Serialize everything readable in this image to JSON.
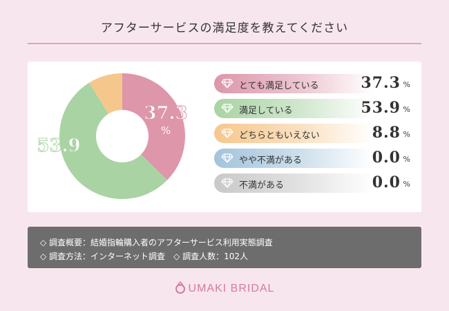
{
  "title": "アフターサービスの満足度を教えてください",
  "chart_data": {
    "type": "pie",
    "categories": [
      "とても満足している",
      "満足している",
      "どちらともいえない",
      "やや不満がある",
      "不満がある"
    ],
    "values": [
      37.3,
      53.9,
      8.8,
      0.0,
      0.0
    ],
    "value_labels": [
      "37.3",
      "53.9",
      "8.8",
      "0.0",
      "0.0"
    ],
    "unit": "%",
    "colors": [
      "#dd96aa",
      "#a9d3a3",
      "#f6c78d",
      "#a3c4dc",
      "#c9c9c9"
    ]
  },
  "notes": {
    "line1": "◇ 調査概要：結婚指輪購入者のアフターサービス利用実態調査",
    "line2": "◇ 調査方法：インターネット調査　◇ 調査人数：102人"
  },
  "brand": {
    "name": "UMAKI BRIDAL",
    "icon": "ring-icon"
  }
}
